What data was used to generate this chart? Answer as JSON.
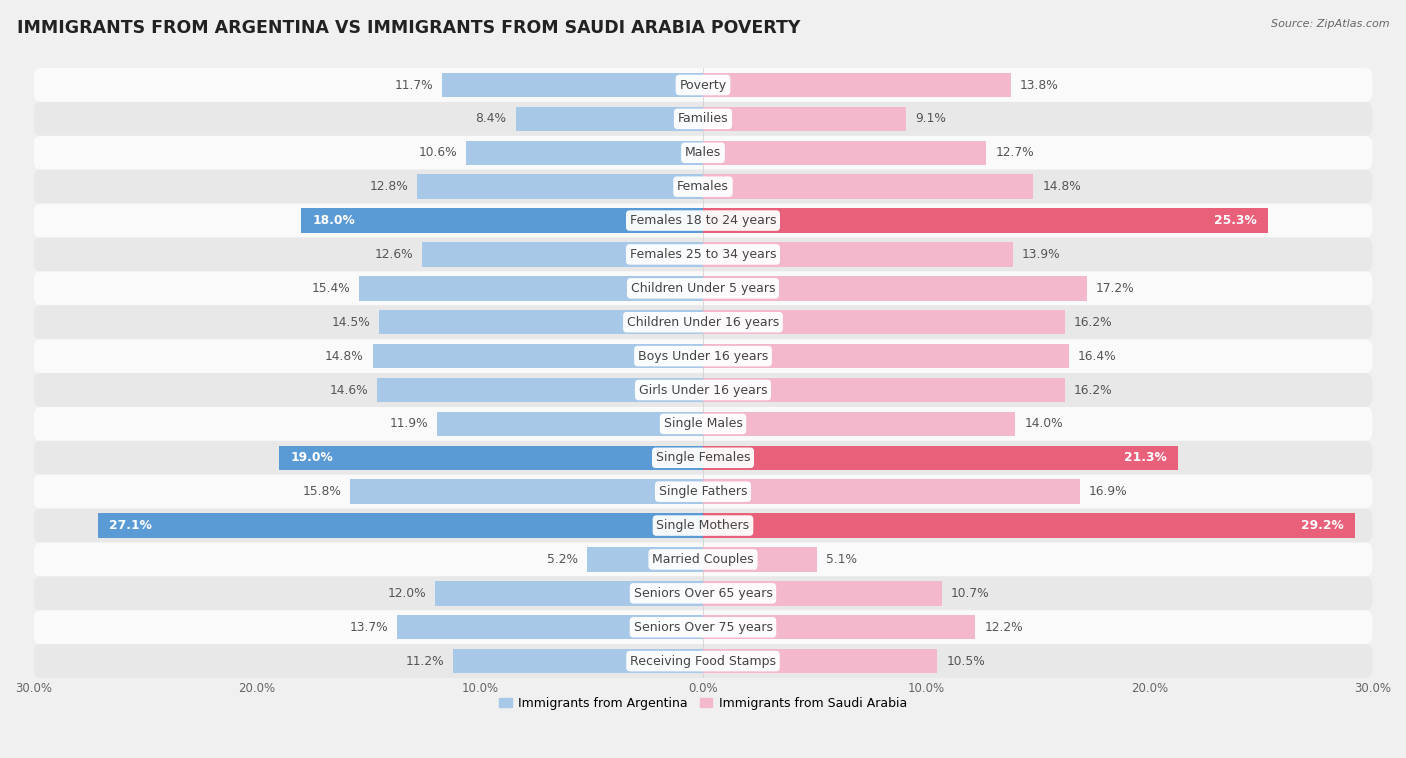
{
  "title": "IMMIGRANTS FROM ARGENTINA VS IMMIGRANTS FROM SAUDI ARABIA POVERTY",
  "source": "Source: ZipAtlas.com",
  "categories": [
    "Poverty",
    "Families",
    "Males",
    "Females",
    "Females 18 to 24 years",
    "Females 25 to 34 years",
    "Children Under 5 years",
    "Children Under 16 years",
    "Boys Under 16 years",
    "Girls Under 16 years",
    "Single Males",
    "Single Females",
    "Single Fathers",
    "Single Mothers",
    "Married Couples",
    "Seniors Over 65 years",
    "Seniors Over 75 years",
    "Receiving Food Stamps"
  ],
  "argentina_values": [
    11.7,
    8.4,
    10.6,
    12.8,
    18.0,
    12.6,
    15.4,
    14.5,
    14.8,
    14.6,
    11.9,
    19.0,
    15.8,
    27.1,
    5.2,
    12.0,
    13.7,
    11.2
  ],
  "saudi_values": [
    13.8,
    9.1,
    12.7,
    14.8,
    25.3,
    13.9,
    17.2,
    16.2,
    16.4,
    16.2,
    14.0,
    21.3,
    16.9,
    29.2,
    5.1,
    10.7,
    12.2,
    10.5
  ],
  "argentina_color": "#a8c8e8",
  "saudi_color": "#f4b8cc",
  "argentina_highlight_color": "#5b9bd5",
  "saudi_highlight_color": "#e8607a",
  "highlight_indices": [
    4,
    11,
    13
  ],
  "bar_height": 0.72,
  "bg_color": "#f0f0f0",
  "row_color_even": "#fafafa",
  "row_color_odd": "#e8e8e8",
  "axis_limit": 30.0,
  "label_fontsize": 9.0,
  "value_fontsize": 8.8,
  "title_fontsize": 12.5,
  "legend_labels": [
    "Immigrants from Argentina",
    "Immigrants from Saudi Arabia"
  ],
  "highlight_text_color": "#ffffff",
  "normal_text_color": "#555555"
}
